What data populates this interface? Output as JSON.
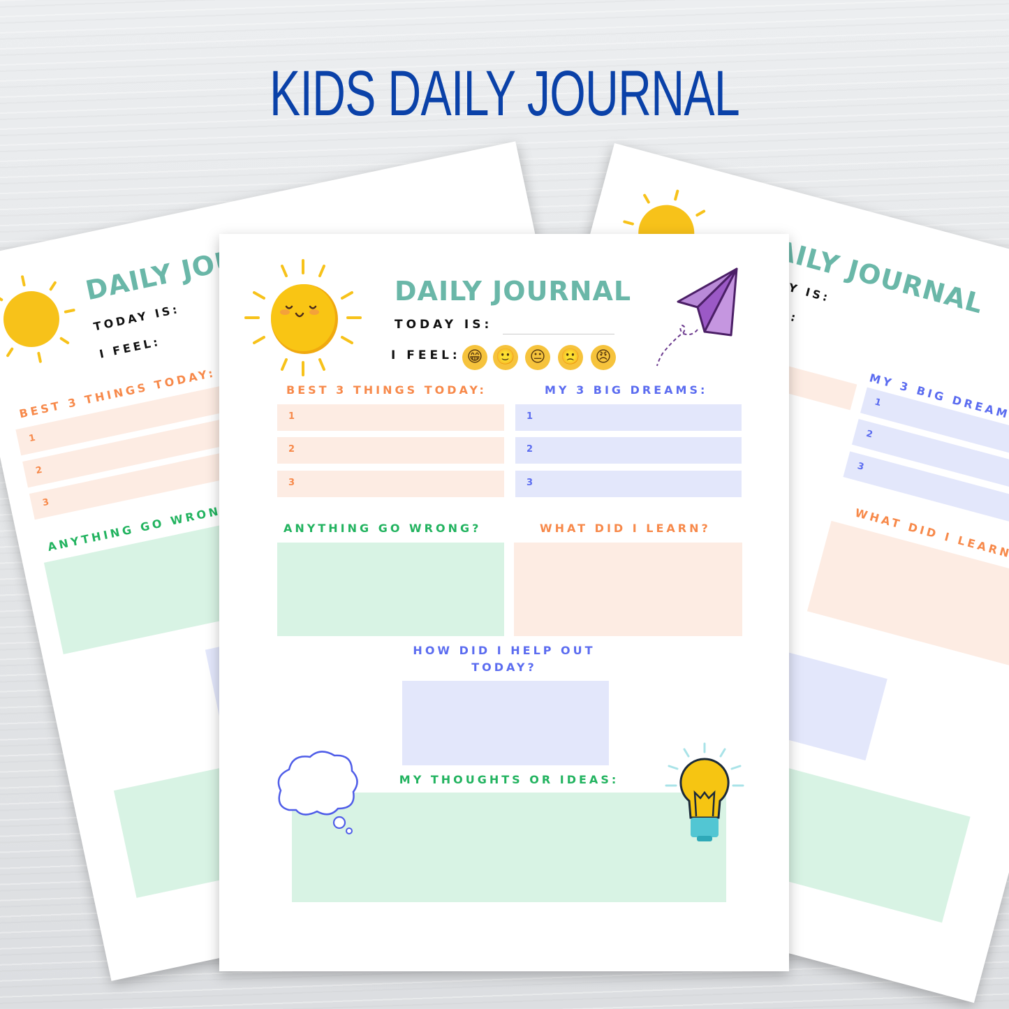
{
  "banner": {
    "title": "KIDS DAILY JOURNAL"
  },
  "journal": {
    "title": "DAILY JOURNAL",
    "today_label": "TODAY IS:",
    "feel_label": "I FEEL:",
    "moods": [
      "😁",
      "🙂",
      "😐",
      "🙁",
      "😠"
    ],
    "best_heading": "BEST 3 THINGS TODAY:",
    "dreams_heading": "MY 3 BIG DREAMS:",
    "numbers": [
      "1",
      "2",
      "3"
    ],
    "wrong_heading": "ANYTHING GO WRONG?",
    "learn_heading": "WHAT DID I LEARN?",
    "help_heading_line1": "HOW DID I HELP OUT",
    "help_heading_line2": "TODAY?",
    "thoughts_heading": "MY THOUGHTS OR IDEAS:"
  },
  "colors": {
    "banner": "#0a41a8",
    "title": "#6ab7a8",
    "orange": "#f7894a",
    "blue": "#5b6cf0",
    "green": "#22b35f",
    "peach": "#fdece3",
    "lavender": "#e3e7fb",
    "mint": "#d8f3e4",
    "sun": "#f7c21a",
    "plane": "#9b59c6"
  }
}
